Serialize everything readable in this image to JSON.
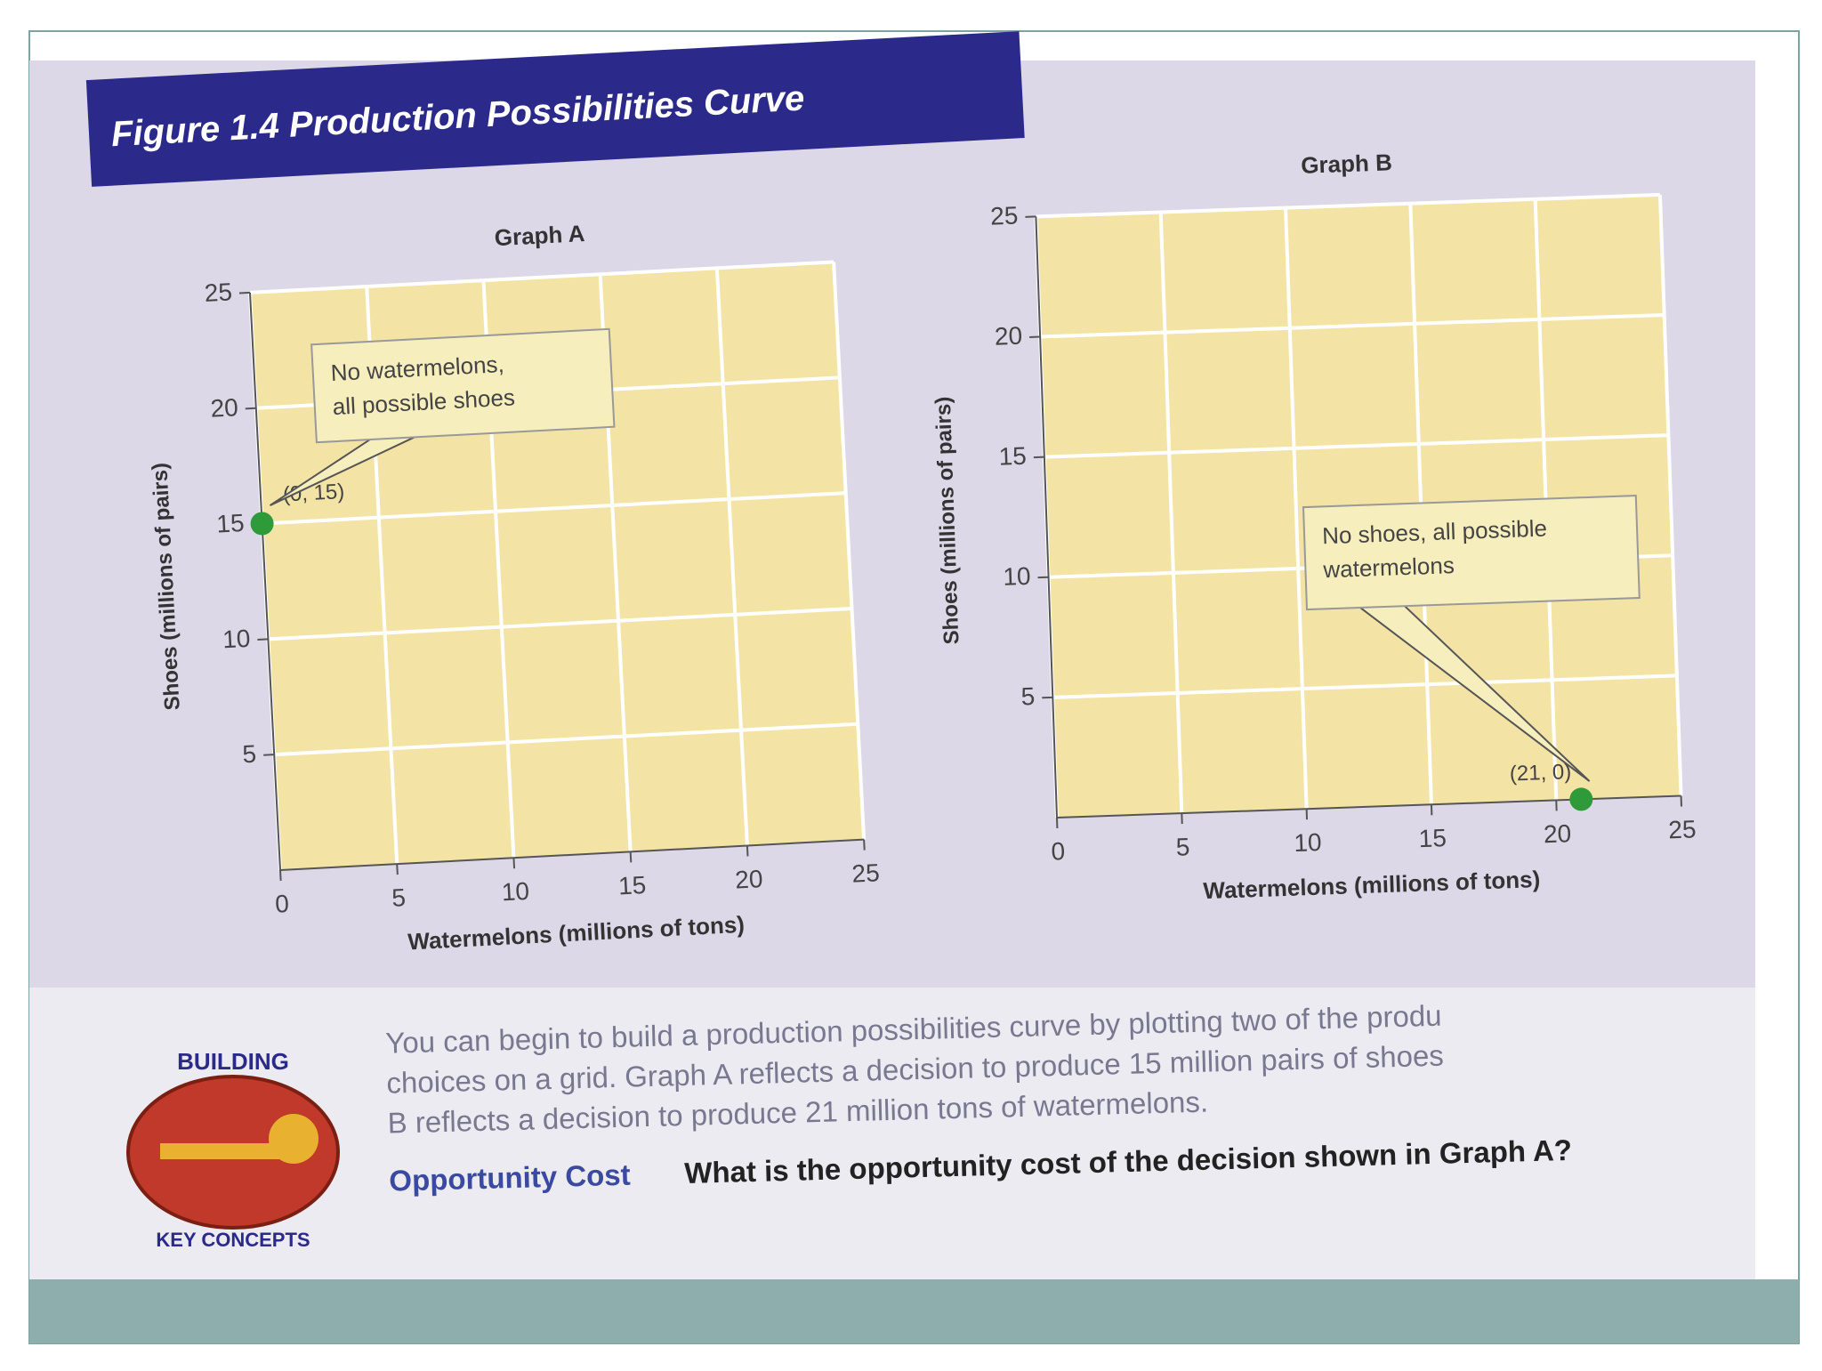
{
  "figure_title": "Figure 1.4 Production Possibilities Curve",
  "chart_data": [
    {
      "type": "scatter",
      "title": "Graph A",
      "x_label": "Watermelons (millions of tons)",
      "y_label": "Shoes (millions of pairs)",
      "x": [
        0
      ],
      "values": [
        15
      ],
      "value_labels": [
        "(0, 15)"
      ],
      "color": "#2f9a3a",
      "xlim": [
        0,
        25
      ],
      "ylim": [
        0,
        25
      ],
      "xticks": [
        0,
        5,
        10,
        15,
        20,
        25
      ],
      "yticks": [
        5,
        10,
        15,
        20,
        25
      ],
      "grid": true,
      "callout": [
        "No watermelons,",
        "all possible shoes"
      ]
    },
    {
      "type": "scatter",
      "title": "Graph B",
      "x_label": "Watermelons (millions of tons)",
      "y_label": "Shoes (millions of pairs)",
      "x": [
        21
      ],
      "values": [
        0
      ],
      "value_labels": [
        "(21, 0)"
      ],
      "color": "#2f9a3a",
      "xlim": [
        0,
        25
      ],
      "ylim": [
        0,
        25
      ],
      "xticks": [
        0,
        5,
        10,
        15,
        20,
        25
      ],
      "yticks": [
        5,
        10,
        15,
        20,
        25
      ],
      "grid": true,
      "callout": [
        "No shoes, all possible",
        "watermelons"
      ]
    }
  ],
  "logo": {
    "top": "BUILDING",
    "bottom": "KEY CONCEPTS"
  },
  "caption": [
    "You can begin to build a production possibilities curve by plotting two of the produ",
    "choices on a grid. Graph A reflects a decision to produce 15 million pairs of shoes",
    "B reflects a decision to produce 21 million tons of watermelons."
  ],
  "concept": "Opportunity Cost",
  "question": "What is the opportunity cost of the decision shown in Graph A?"
}
